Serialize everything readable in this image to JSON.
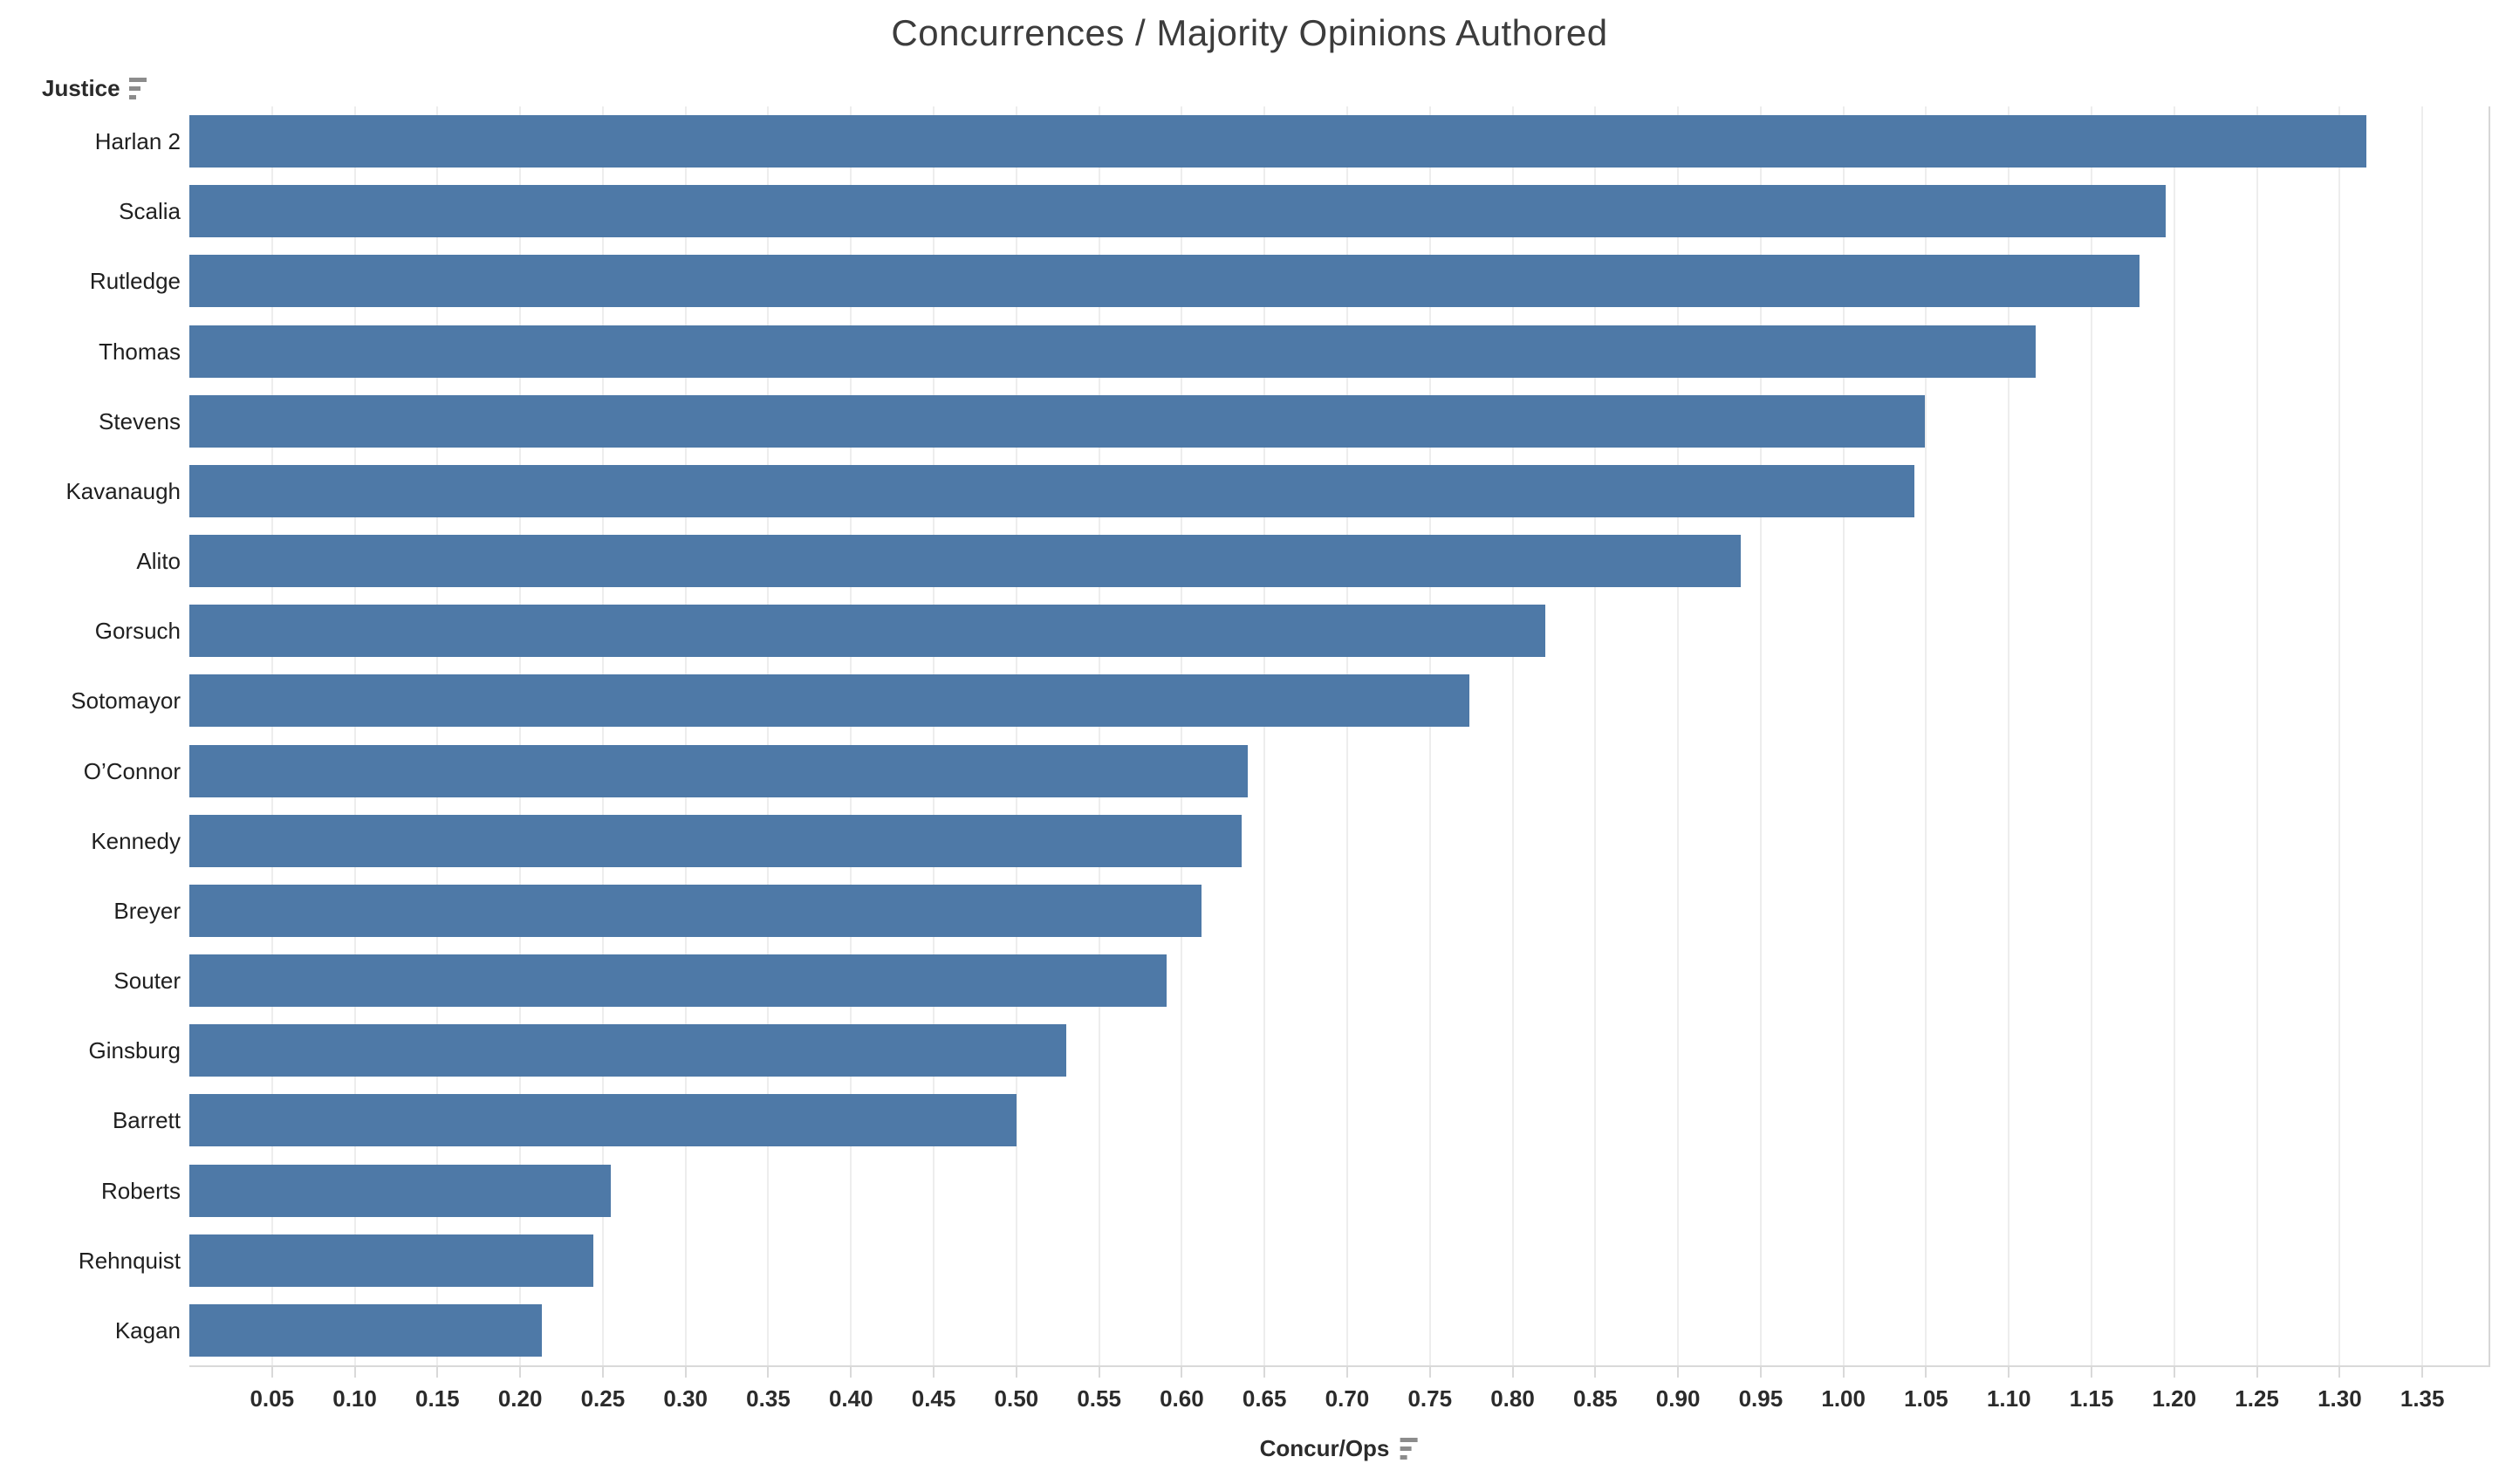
{
  "title": "Concurrences / Majority Opinions Authored",
  "row_header": {
    "label": "Justice",
    "sort_icon": "sort-descending"
  },
  "x_axis": {
    "label": "Concur/Ops",
    "sort_icon": "sort-descending",
    "tick_labels": [
      "0.05",
      "0.10",
      "0.15",
      "0.20",
      "0.25",
      "0.30",
      "0.35",
      "0.40",
      "0.45",
      "0.50",
      "0.55",
      "0.60",
      "0.65",
      "0.70",
      "0.75",
      "0.80",
      "0.85",
      "0.90",
      "0.95",
      "1.00",
      "1.05",
      "1.10",
      "1.15",
      "1.20",
      "1.25",
      "1.30",
      "1.35"
    ]
  },
  "chart_data": {
    "type": "bar",
    "orientation": "horizontal",
    "title": "Concurrences / Majority Opinions Authored",
    "categories": [
      "Harlan 2",
      "Scalia",
      "Rutledge",
      "Thomas",
      "Stevens",
      "Kavanaugh",
      "Alito",
      "Gorsuch",
      "Sotomayor",
      "O’Connor",
      "Kennedy",
      "Breyer",
      "Souter",
      "Ginsburg",
      "Barrett",
      "Roberts",
      "Rehnquist",
      "Kagan"
    ],
    "values": [
      1.316,
      1.195,
      1.179,
      1.116,
      1.049,
      1.043,
      0.938,
      0.82,
      0.774,
      0.64,
      0.636,
      0.612,
      0.591,
      0.53,
      0.5,
      0.255,
      0.244,
      0.213
    ],
    "xlabel": "Concur/Ops",
    "ylabel": "Justice",
    "xlim": [
      0,
      1.39
    ],
    "xtick_step": 0.05,
    "grid": true,
    "legend": "none",
    "sort": "descending"
  },
  "colors": {
    "bar": "#4e79a7",
    "gridline": "#ededed",
    "axis_line": "#d9d9d9",
    "title_text": "#3c3c3c",
    "label_text": "#1f1f1f",
    "tick_text": "#2b2b2b",
    "sort_icon": "#8c8c8c",
    "background": "#ffffff"
  }
}
